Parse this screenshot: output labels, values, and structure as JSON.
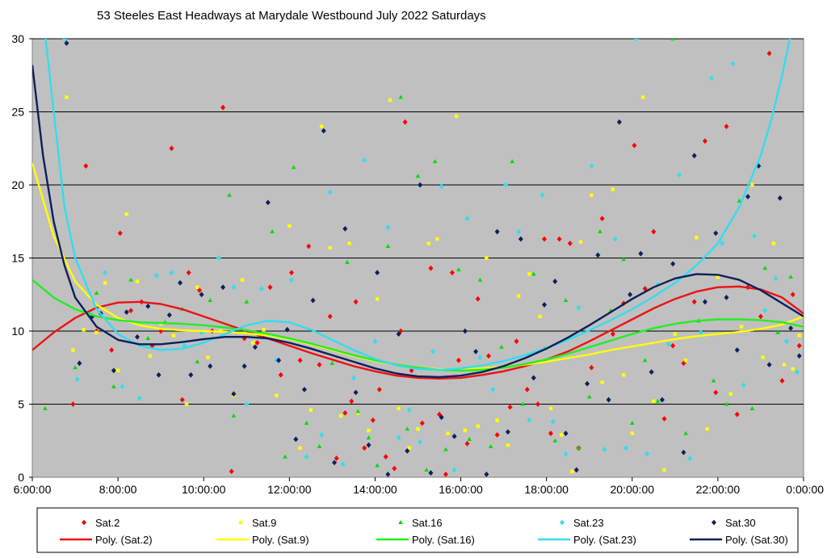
{
  "chart_data": {
    "type": "scatter",
    "title": "53 Steeles East Headways at Marydale Westbound July 2022  Saturdays",
    "xlabel": "",
    "ylabel": "",
    "xlim": [
      6,
      24
    ],
    "ylim": [
      0,
      30
    ],
    "x_tick_labels": [
      "6:00:00",
      "8:00:00",
      "10:00:00",
      "12:00:00",
      "14:00:00",
      "16:00:00",
      "18:00:00",
      "20:00:00",
      "22:00:00",
      "0:00:00"
    ],
    "y_tick_labels": [
      "0",
      "5",
      "10",
      "15",
      "20",
      "25",
      "30"
    ],
    "grid": "horizontal",
    "plot_background": "#c0c0c0",
    "legend_position": "bottom",
    "series": [
      {
        "name": "Sat.2",
        "marker": "diamond",
        "color": "#ff0000",
        "x": [
          6.95,
          7.25,
          7.5,
          7.85,
          8.05,
          8.3,
          8.55,
          8.8,
          9.0,
          9.25,
          9.5,
          9.65,
          9.9,
          10.2,
          10.45,
          10.65,
          10.95,
          11.25,
          11.55,
          11.8,
          12.05,
          12.25,
          12.45,
          12.7,
          12.95,
          13.1,
          13.3,
          13.45,
          13.55,
          13.75,
          13.95,
          14.1,
          14.25,
          14.45,
          14.6,
          14.7,
          14.85,
          15.1,
          15.3,
          15.5,
          15.65,
          15.8,
          15.95,
          16.15,
          16.4,
          16.65,
          16.85,
          17.15,
          17.3,
          17.55,
          17.8,
          17.95,
          18.1,
          18.3,
          18.55,
          18.75,
          19.05,
          19.3,
          19.55,
          19.8,
          20.05,
          20.3,
          20.5,
          20.75,
          20.95,
          21.2,
          21.45,
          21.7,
          21.95,
          22.2,
          22.45,
          22.7,
          23.0,
          23.2,
          23.5,
          23.75,
          23.9
        ],
        "y": [
          5.0,
          21.3,
          10.0,
          8.7,
          16.7,
          11.4,
          12.0,
          9.0,
          10.0,
          22.5,
          5.3,
          14.0,
          12.8,
          10.0,
          25.3,
          0.4,
          9.5,
          9.2,
          13.0,
          7.0,
          14.0,
          8.0,
          15.8,
          7.7,
          11.0,
          1.3,
          4.4,
          5.2,
          12.0,
          2.0,
          3.9,
          6.0,
          1.4,
          0.6,
          10.0,
          24.3,
          7.3,
          3.7,
          14.3,
          4.3,
          0.2,
          14.0,
          8.0,
          2.3,
          12.2,
          8.3,
          2.9,
          4.8,
          9.3,
          6.0,
          5.0,
          16.3,
          3.0,
          16.3,
          16.0,
          2.0,
          7.5,
          17.7,
          9.8,
          11.9,
          22.7,
          12.9,
          16.8,
          4.0,
          9.0,
          7.8,
          12.0,
          23.0,
          5.8,
          24.0,
          4.3,
          13.0,
          11.0,
          29.0,
          6.6,
          12.5,
          9.0
        ]
      },
      {
        "name": "Sat.9",
        "marker": "square",
        "color": "#ffff00",
        "x": [
          6.8,
          6.95,
          7.2,
          7.5,
          7.7,
          8.0,
          8.2,
          8.45,
          8.75,
          9.0,
          9.3,
          9.6,
          9.85,
          10.1,
          10.4,
          10.7,
          10.9,
          11.15,
          11.4,
          11.7,
          12.0,
          12.25,
          12.5,
          12.75,
          12.95,
          13.2,
          13.4,
          13.6,
          13.85,
          14.05,
          14.35,
          14.55,
          14.8,
          15.0,
          15.25,
          15.45,
          15.7,
          15.9,
          16.1,
          16.4,
          16.6,
          16.85,
          17.1,
          17.35,
          17.6,
          17.85,
          18.1,
          18.35,
          18.6,
          18.8,
          19.05,
          19.3,
          19.55,
          19.8,
          20.0,
          20.25,
          20.5,
          20.75,
          21.0,
          21.25,
          21.5,
          21.75,
          22.0,
          22.3,
          22.55,
          22.8,
          23.05,
          23.3,
          23.55,
          23.75,
          23.9
        ],
        "y": [
          26.0,
          8.7,
          10.1,
          9.9,
          13.3,
          7.3,
          18.0,
          13.4,
          8.3,
          10.5,
          9.7,
          5.0,
          13.0,
          8.2,
          10.0,
          5.6,
          13.5,
          9.2,
          10.1,
          5.6,
          17.2,
          2.0,
          4.6,
          24.0,
          15.7,
          4.2,
          16.0,
          4.4,
          3.2,
          12.2,
          25.8,
          4.7,
          2.0,
          3.3,
          16.0,
          16.3,
          3.0,
          24.7,
          3.2,
          3.5,
          15.0,
          3.9,
          2.2,
          12.4,
          13.9,
          11.0,
          4.7,
          2.9,
          0.4,
          16.1,
          19.3,
          6.5,
          19.7,
          7.0,
          3.0,
          26.0,
          5.2,
          0.5,
          9.8,
          8.0,
          16.4,
          3.3,
          13.7,
          5.7,
          10.3,
          20.0,
          8.2,
          16.0,
          7.7,
          7.4,
          9.7
        ]
      },
      {
        "name": "Sat.16",
        "marker": "triangle",
        "color": "#00dd00",
        "x": [
          6.3,
          7.0,
          7.5,
          7.9,
          8.3,
          8.7,
          9.1,
          9.5,
          9.85,
          10.15,
          10.6,
          10.7,
          11.0,
          11.3,
          11.6,
          11.9,
          12.1,
          12.4,
          12.7,
          13.0,
          13.35,
          13.6,
          13.85,
          14.05,
          14.3,
          14.6,
          14.75,
          15.0,
          15.2,
          15.4,
          15.65,
          15.95,
          16.2,
          16.45,
          16.7,
          16.95,
          17.2,
          17.45,
          17.7,
          17.95,
          18.2,
          18.45,
          18.75,
          19.0,
          19.25,
          19.5,
          19.8,
          20.0,
          20.3,
          20.6,
          20.95,
          21.25,
          21.55,
          21.9,
          22.2,
          22.5,
          22.8,
          23.1,
          23.4,
          23.7
        ],
        "y": [
          4.7,
          7.5,
          12.6,
          6.2,
          13.5,
          9.5,
          10.6,
          11.5,
          7.9,
          12.1,
          19.3,
          4.2,
          12.0,
          9.7,
          16.8,
          1.4,
          21.2,
          3.7,
          2.1,
          7.8,
          14.7,
          4.5,
          2.7,
          0.8,
          15.8,
          26.0,
          3.3,
          20.6,
          0.5,
          21.6,
          1.9,
          14.2,
          2.6,
          13.5,
          2.1,
          8.9,
          21.6,
          5.0,
          13.9,
          8.8,
          2.5,
          12.1,
          2.0,
          5.5,
          16.8,
          11.4,
          14.9,
          3.7,
          8.0,
          5.2,
          30.0,
          3.0,
          10.7,
          6.6,
          5.0,
          18.9,
          4.7,
          14.3,
          9.9,
          13.7
        ]
      },
      {
        "name": "Sat.23",
        "marker": "diamond",
        "color": "#33ddee",
        "x": [
          6.75,
          7.05,
          7.35,
          7.7,
          8.1,
          8.5,
          8.9,
          9.25,
          9.55,
          9.95,
          10.35,
          10.7,
          11.0,
          11.35,
          11.7,
          12.05,
          12.4,
          12.75,
          12.95,
          13.25,
          13.5,
          13.75,
          14.0,
          14.3,
          14.55,
          14.8,
          15.05,
          15.35,
          15.55,
          15.85,
          16.15,
          16.45,
          16.75,
          17.05,
          17.35,
          17.6,
          17.9,
          18.15,
          18.45,
          18.75,
          19.05,
          19.35,
          19.6,
          19.85,
          20.1,
          20.35,
          20.6,
          20.85,
          21.1,
          21.35,
          21.6,
          21.85,
          22.1,
          22.35,
          22.6,
          22.85,
          23.1,
          23.35,
          23.6,
          23.85
        ],
        "y": [
          30.0,
          6.7,
          11.3,
          14.0,
          6.2,
          5.4,
          13.8,
          14.0,
          9.0,
          9.9,
          15.0,
          13.0,
          5.0,
          12.9,
          8.0,
          13.5,
          1.4,
          2.9,
          19.5,
          0.9,
          6.8,
          21.7,
          9.3,
          17.1,
          2.7,
          4.6,
          2.4,
          8.6,
          19.9,
          0.5,
          17.7,
          8.2,
          6.0,
          20.0,
          16.8,
          3.9,
          19.3,
          3.8,
          1.6,
          11.6,
          21.3,
          1.9,
          16.3,
          2.0,
          30.0,
          1.6,
          13.2,
          9.1,
          20.7,
          1.3,
          9.9,
          27.3,
          16.0,
          28.3,
          6.3,
          16.5,
          11.4,
          13.6,
          9.3,
          7.2
        ]
      },
      {
        "name": "Sat.30",
        "marker": "diamond",
        "color": "#0d1f5c",
        "x": [
          6.8,
          7.1,
          7.4,
          7.6,
          7.9,
          8.2,
          8.45,
          8.7,
          8.95,
          9.2,
          9.45,
          9.7,
          9.95,
          10.15,
          10.45,
          10.7,
          10.95,
          11.2,
          11.5,
          11.75,
          11.95,
          12.15,
          12.35,
          12.55,
          12.8,
          13.05,
          13.3,
          13.55,
          13.85,
          14.05,
          14.3,
          14.55,
          14.75,
          15.05,
          15.3,
          15.55,
          15.85,
          16.1,
          16.35,
          16.6,
          16.85,
          17.1,
          17.4,
          17.7,
          17.95,
          18.2,
          18.45,
          18.7,
          18.95,
          19.2,
          19.45,
          19.7,
          19.95,
          20.2,
          20.45,
          20.7,
          20.95,
          21.2,
          21.45,
          21.7,
          21.95,
          22.2,
          22.45,
          22.7,
          22.95,
          23.2,
          23.45,
          23.7,
          23.9
        ],
        "y": [
          29.7,
          7.8,
          11.0,
          11.2,
          7.3,
          11.3,
          9.6,
          11.7,
          7.0,
          11.1,
          13.3,
          7.0,
          12.5,
          7.6,
          13.0,
          5.7,
          7.6,
          8.9,
          18.8,
          8.0,
          10.1,
          2.6,
          6.0,
          12.1,
          23.7,
          1.0,
          17.0,
          5.8,
          2.2,
          14.0,
          0.2,
          9.8,
          1.8,
          20.0,
          0.3,
          4.1,
          2.8,
          10.0,
          8.6,
          0.2,
          16.8,
          3.1,
          16.3,
          6.8,
          11.8,
          13.4,
          3.0,
          0.5,
          6.4,
          15.2,
          5.3,
          24.3,
          12.5,
          15.3,
          7.2,
          5.3,
          14.6,
          1.7,
          22.0,
          12.0,
          16.7,
          12.3,
          8.7,
          19.2,
          21.3,
          7.7,
          19.1,
          10.2,
          8.3
        ]
      }
    ],
    "trendlines": [
      {
        "name": "Poly. (Sat.2)",
        "color": "#ee1111",
        "x": [
          6,
          6.5,
          7,
          7.5,
          8,
          8.5,
          9,
          9.5,
          10,
          10.5,
          11,
          11.5,
          12,
          12.5,
          13,
          13.5,
          14,
          14.5,
          15,
          15.5,
          16,
          16.5,
          17,
          17.5,
          18,
          18.5,
          19,
          19.5,
          20,
          20.5,
          21,
          21.5,
          22,
          22.5,
          23,
          23.5,
          24
        ],
        "y": [
          8.7,
          9.9,
          10.9,
          11.6,
          11.95,
          12.0,
          11.85,
          11.5,
          11.0,
          10.5,
          10.0,
          9.5,
          9.0,
          8.5,
          8.05,
          7.6,
          7.25,
          6.95,
          6.8,
          6.75,
          6.8,
          7.0,
          7.25,
          7.6,
          8.05,
          8.6,
          9.3,
          10.05,
          10.8,
          11.55,
          12.2,
          12.7,
          13.0,
          13.05,
          12.85,
          12.3,
          11.2
        ]
      },
      {
        "name": "Poly. (Sat.9)",
        "color": "#ffff00",
        "x": [
          6,
          6.5,
          7,
          7.5,
          8,
          8.5,
          9,
          9.5,
          10,
          10.5,
          11,
          11.5,
          12,
          12.5,
          13,
          13.5,
          14,
          14.5,
          15,
          15.5,
          16,
          16.5,
          17,
          17.5,
          18,
          18.5,
          19,
          19.5,
          20,
          20.5,
          21,
          21.5,
          22,
          22.5,
          23,
          23.5,
          24
        ],
        "y": [
          21.5,
          16.5,
          13.4,
          11.8,
          10.9,
          10.4,
          10.15,
          10.05,
          10.0,
          9.95,
          9.85,
          9.7,
          9.45,
          9.1,
          8.7,
          8.3,
          7.95,
          7.7,
          7.5,
          7.4,
          7.4,
          7.45,
          7.55,
          7.7,
          7.9,
          8.15,
          8.4,
          8.7,
          8.95,
          9.2,
          9.45,
          9.65,
          9.8,
          9.95,
          10.15,
          10.45,
          11.0
        ]
      },
      {
        "name": "Poly. (Sat.16)",
        "color": "#22ee22",
        "x": [
          6,
          6.5,
          7,
          7.5,
          8,
          8.5,
          9,
          9.5,
          10,
          10.5,
          11,
          11.5,
          12,
          12.5,
          13,
          13.5,
          14,
          14.5,
          15,
          15.5,
          16,
          16.5,
          17,
          17.5,
          18,
          18.5,
          19,
          19.5,
          20,
          20.5,
          21,
          21.5,
          22,
          22.5,
          23,
          23.5,
          24
        ],
        "y": [
          13.5,
          12.3,
          11.5,
          11.0,
          10.75,
          10.6,
          10.55,
          10.5,
          10.4,
          10.25,
          10.05,
          9.8,
          9.5,
          9.15,
          8.75,
          8.35,
          8.0,
          7.7,
          7.5,
          7.35,
          7.3,
          7.35,
          7.5,
          7.75,
          8.05,
          8.45,
          8.9,
          9.35,
          9.8,
          10.2,
          10.5,
          10.7,
          10.8,
          10.8,
          10.75,
          10.6,
          10.3
        ]
      },
      {
        "name": "Poly. (Sat.23)",
        "color": "#33ddee",
        "x": [
          6,
          6.25,
          6.5,
          6.75,
          7,
          7.5,
          8,
          8.5,
          9,
          9.5,
          10,
          10.5,
          11,
          11.5,
          12,
          12.5,
          13,
          13.5,
          14,
          14.5,
          15,
          15.5,
          16,
          16.5,
          17,
          17.5,
          18,
          18.5,
          19,
          19.5,
          20,
          20.5,
          21,
          21.5,
          22,
          22.5,
          23,
          23.25,
          23.5,
          23.75,
          24
        ],
        "y": [
          38.0,
          34.0,
          25.0,
          18.5,
          15.0,
          11.5,
          9.8,
          9.0,
          8.7,
          8.8,
          9.2,
          9.8,
          10.4,
          10.7,
          10.6,
          10.1,
          9.4,
          8.7,
          8.1,
          7.65,
          7.4,
          7.35,
          7.45,
          7.65,
          7.95,
          8.35,
          8.85,
          9.4,
          10.05,
          10.75,
          11.5,
          12.35,
          13.3,
          14.5,
          16.0,
          18.5,
          22.0,
          24.5,
          27.5,
          31.0,
          35.0
        ]
      },
      {
        "name": "Poly. (Sat.30)",
        "color": "#0d1f5c",
        "x": [
          6,
          6.25,
          6.5,
          6.75,
          7,
          7.5,
          8,
          8.5,
          9,
          9.5,
          10,
          10.5,
          11,
          11.5,
          12,
          12.5,
          13,
          13.5,
          14,
          14.5,
          15,
          15.5,
          16,
          16.5,
          17,
          17.5,
          18,
          18.5,
          19,
          19.5,
          20,
          20.5,
          21,
          21.5,
          22,
          22.5,
          23,
          23.5,
          24
        ],
        "y": [
          28.2,
          22.0,
          17.5,
          14.5,
          12.3,
          10.3,
          9.4,
          9.1,
          9.1,
          9.25,
          9.45,
          9.6,
          9.6,
          9.5,
          9.2,
          8.8,
          8.35,
          7.9,
          7.45,
          7.1,
          6.9,
          6.85,
          6.95,
          7.2,
          7.6,
          8.15,
          8.8,
          9.55,
          10.4,
          11.3,
          12.2,
          13.0,
          13.6,
          13.9,
          13.85,
          13.5,
          12.8,
          11.9,
          11.0
        ]
      }
    ],
    "legend": {
      "markers": [
        "Sat.2",
        "Sat.9",
        "Sat.16",
        "Sat.23",
        "Sat.30"
      ],
      "lines": [
        "Poly. (Sat.2)",
        "Poly. (Sat.9)",
        "Poly. (Sat.16)",
        "Poly. (Sat.23)",
        "Poly. (Sat.30)"
      ]
    }
  }
}
